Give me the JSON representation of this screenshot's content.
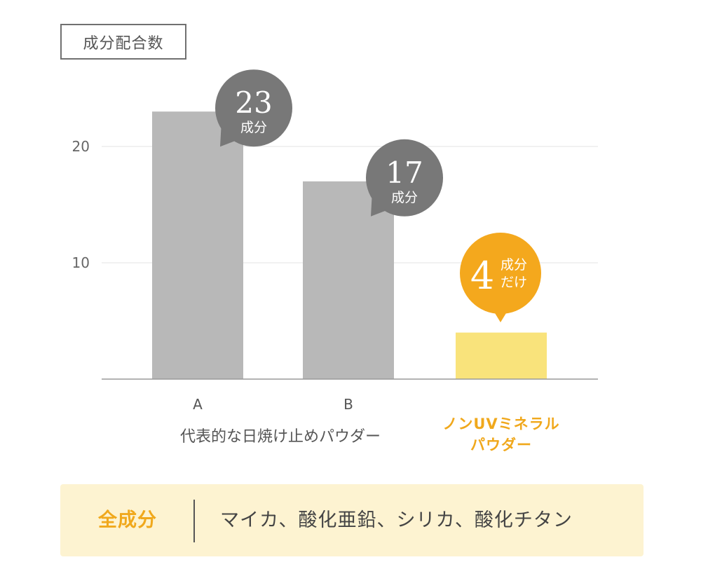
{
  "legend_label": "成分配合数",
  "chart_data": {
    "type": "bar",
    "categories": [
      "A",
      "B",
      "ノンUVミネラルパウダー"
    ],
    "values": [
      23,
      17,
      4
    ],
    "ylim": [
      0,
      24
    ],
    "yticks": [
      10,
      20
    ],
    "grid": true,
    "bar_colors": [
      "#b8b8b8",
      "#b8b8b8",
      "#f9e37b"
    ],
    "group_label": "代表的な日焼け止めパウダー",
    "highlight_label_lines": [
      "ノンUVミネラル",
      "パウダー"
    ],
    "callouts": [
      {
        "number": "23",
        "unit": "成分",
        "color": "#787878"
      },
      {
        "number": "17",
        "unit": "成分",
        "color": "#787878"
      },
      {
        "number": "4",
        "unit_lines": [
          "成分",
          "だけ"
        ],
        "color": "#f4a81d"
      }
    ]
  },
  "ingredients": {
    "label": "全成分",
    "text": "マイカ、酸化亜鉛、シリカ、酸化チタン"
  },
  "colors": {
    "accent": "#f4a81d",
    "accent_text": "#f0a81c",
    "grid": "#e3e3e3",
    "axis": "#9a9a9a",
    "panel": "#fdf3d1"
  }
}
